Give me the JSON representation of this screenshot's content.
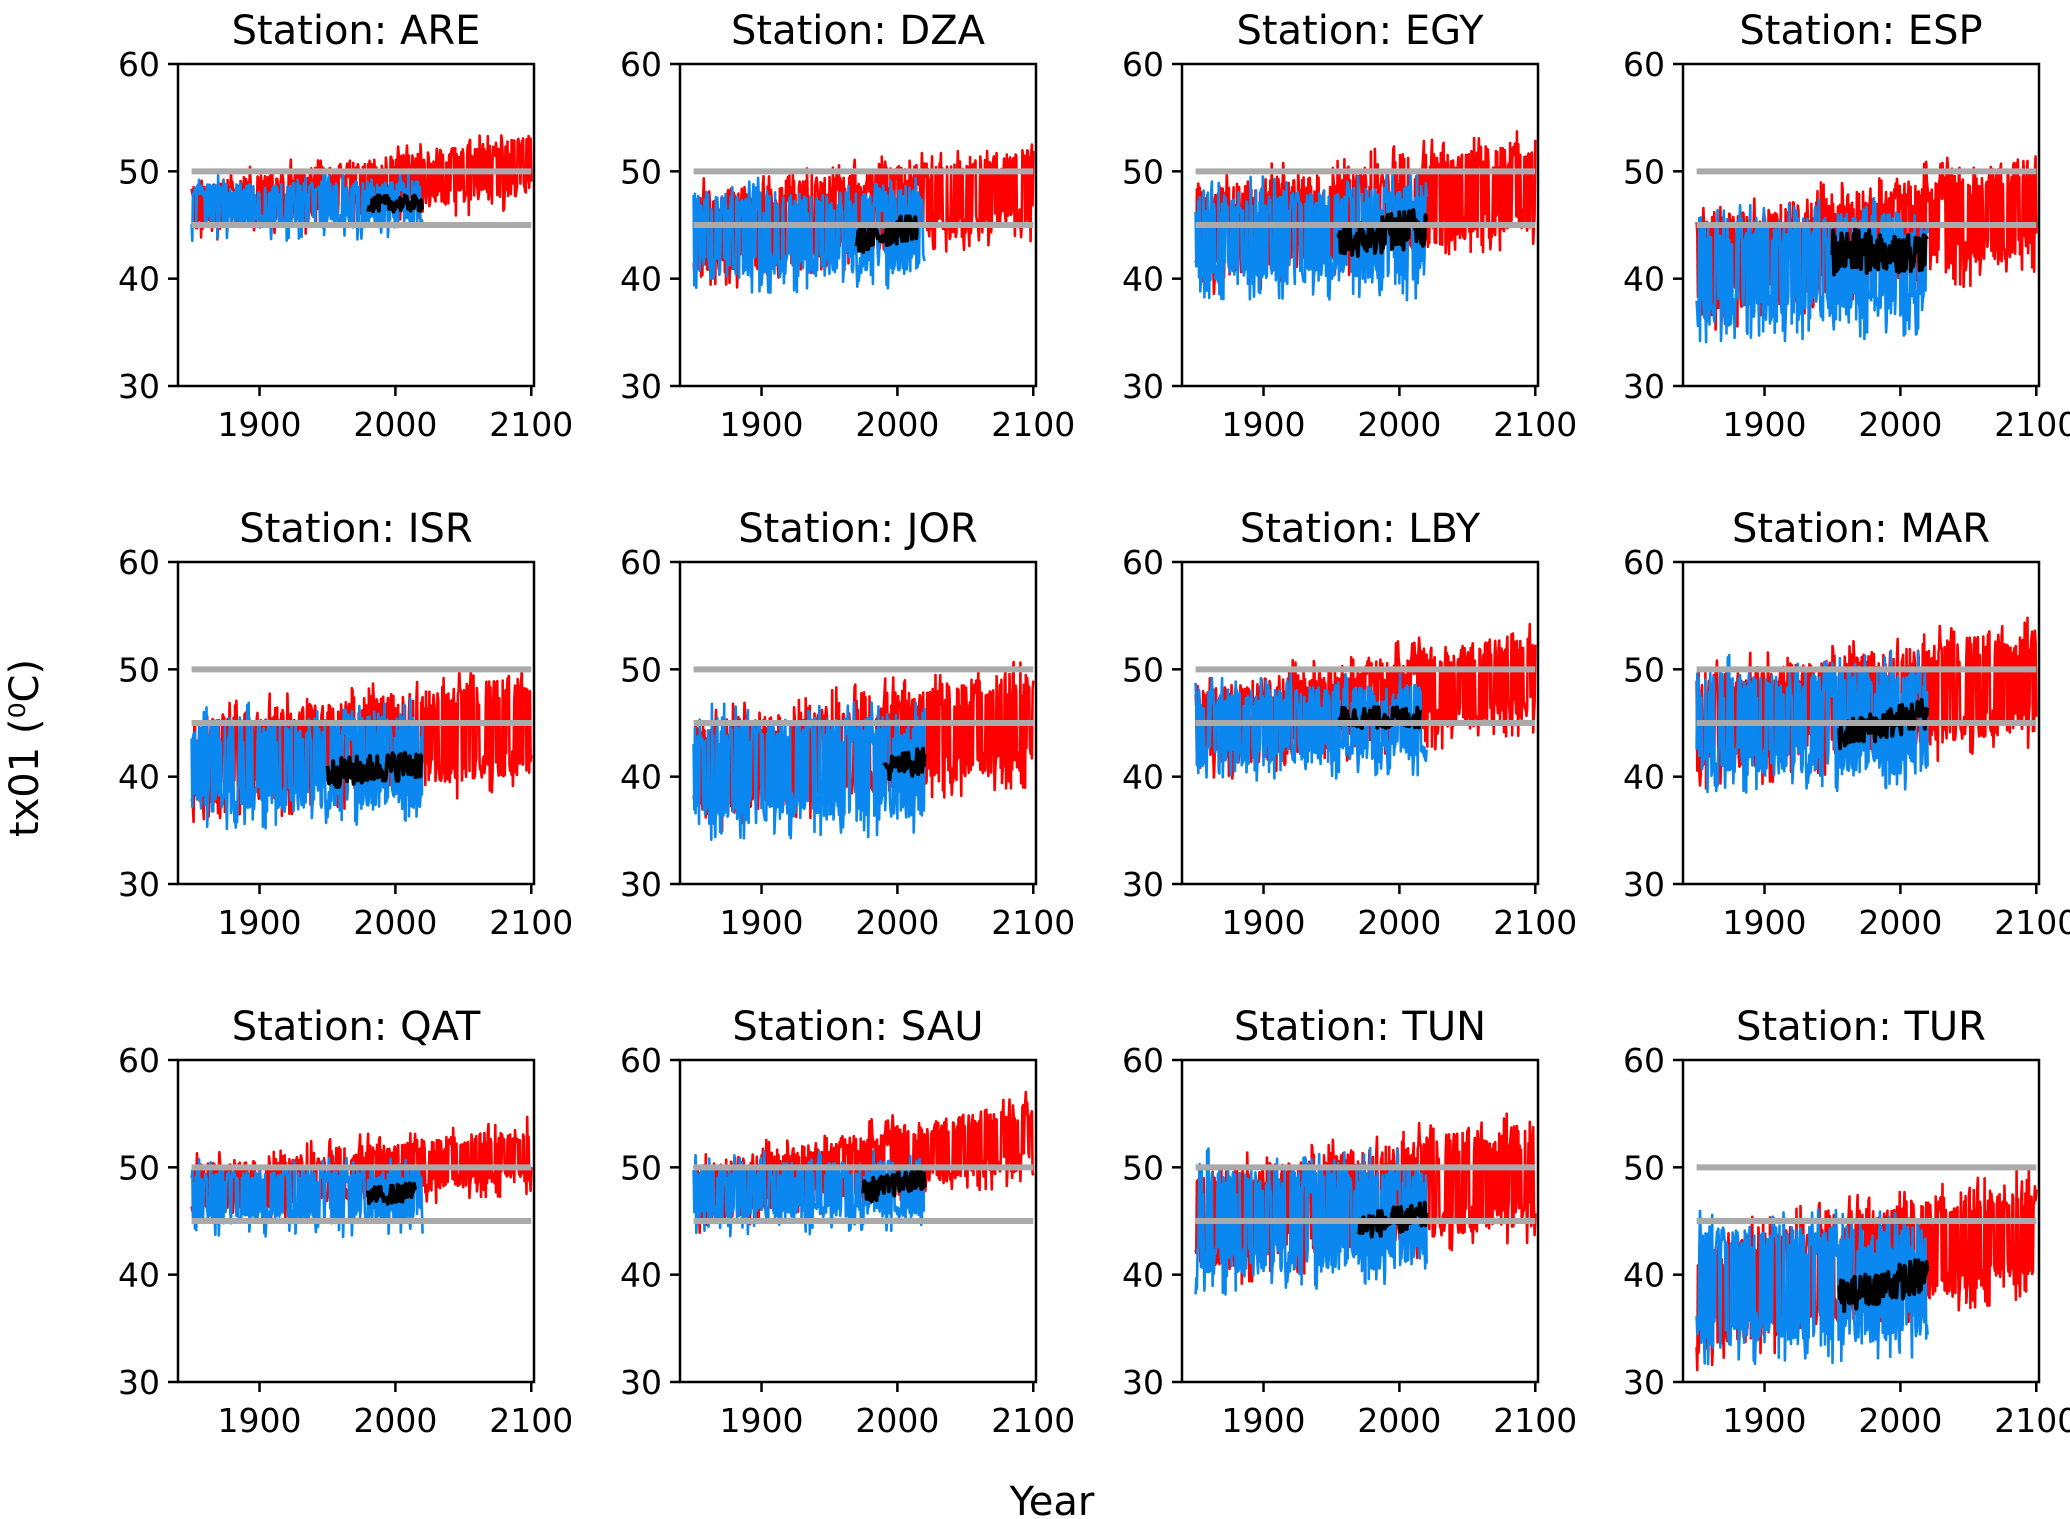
{
  "figure": {
    "xlabel": "Year",
    "ylabel": "tx01 (⁰C)"
  },
  "colors": {
    "historical_projection": "#ff0000",
    "model_simulations": "#0a88f0",
    "observations": "#000000",
    "threshold_lines": "#aaaaaa"
  },
  "chart_data": [
    {
      "type": "line",
      "title": "Station: ARE",
      "xlim": [
        1840,
        2102
      ],
      "ylim": [
        30,
        60
      ],
      "xticks": [
        1900,
        2000,
        2100
      ],
      "yticks": [
        30,
        40,
        50,
        60
      ],
      "grid": false,
      "hlines": [
        45,
        50
      ],
      "series": [
        {
          "color": "#ff0000",
          "x": [
            1850,
            2100
          ],
          "lower": [
            44.0,
            47.5
          ],
          "upper": [
            49.0,
            53.5
          ],
          "endpoint_x": 2100
        },
        {
          "color": "#0a88f0",
          "x": [
            1850,
            2020
          ],
          "lower": [
            44.5,
            44.5
          ],
          "upper": [
            49.0,
            49.5
          ]
        },
        {
          "color": "#000000",
          "x": [
            1980,
            2020
          ],
          "lower": [
            45.5,
            45.5
          ],
          "upper": [
            48.5,
            48.5
          ]
        }
      ]
    },
    {
      "type": "line",
      "title": "Station: DZA",
      "xlim": [
        1840,
        2102
      ],
      "ylim": [
        30,
        60
      ],
      "xticks": [
        1900,
        2000,
        2100
      ],
      "yticks": [
        30,
        40,
        50,
        60
      ],
      "grid": false,
      "hlines": [
        45,
        50
      ],
      "series": [
        {
          "color": "#ff0000",
          "x": [
            1850,
            2100
          ],
          "lower": [
            39.5,
            44.5
          ],
          "upper": [
            48.5,
            52.5
          ]
        },
        {
          "color": "#0a88f0",
          "x": [
            1850,
            2020
          ],
          "lower": [
            39.5,
            40.0
          ],
          "upper": [
            48.5,
            49.0
          ]
        },
        {
          "color": "#000000",
          "x": [
            1970,
            2015
          ],
          "lower": [
            41.0,
            42.5
          ],
          "upper": [
            46.0,
            47.5
          ]
        }
      ]
    },
    {
      "type": "line",
      "title": "Station: EGY",
      "xlim": [
        1840,
        2102
      ],
      "ylim": [
        30,
        60
      ],
      "xticks": [
        1900,
        2000,
        2100
      ],
      "yticks": [
        30,
        40,
        50,
        60
      ],
      "grid": false,
      "hlines": [
        45,
        50
      ],
      "series": [
        {
          "color": "#ff0000",
          "x": [
            1850,
            2100
          ],
          "lower": [
            39.0,
            44.0
          ],
          "upper": [
            49.0,
            53.5
          ]
        },
        {
          "color": "#0a88f0",
          "x": [
            1850,
            2020
          ],
          "lower": [
            39.0,
            39.0
          ],
          "upper": [
            48.5,
            49.5
          ]
        },
        {
          "color": "#000000",
          "x": [
            1955,
            2020
          ],
          "lower": [
            40.0,
            41.0
          ],
          "upper": [
            46.5,
            49.0
          ]
        }
      ]
    },
    {
      "type": "line",
      "title": "Station: ESP",
      "xlim": [
        1840,
        2102
      ],
      "ylim": [
        30,
        60
      ],
      "xticks": [
        1900,
        2000,
        2100
      ],
      "yticks": [
        30,
        40,
        50,
        60
      ],
      "grid": false,
      "hlines": [
        45,
        50
      ],
      "series": [
        {
          "color": "#ff0000",
          "x": [
            1850,
            2100
          ],
          "lower": [
            35.5,
            41.5
          ],
          "upper": [
            46.0,
            52.0
          ]
        },
        {
          "color": "#0a88f0",
          "x": [
            1850,
            2020
          ],
          "lower": [
            35.0,
            35.5
          ],
          "upper": [
            46.0,
            47.0
          ]
        },
        {
          "color": "#000000",
          "x": [
            1950,
            2020
          ],
          "lower": [
            38.0,
            39.0
          ],
          "upper": [
            47.0,
            46.0
          ]
        }
      ]
    },
    {
      "type": "line",
      "title": "Station: ISR",
      "xlim": [
        1840,
        2102
      ],
      "ylim": [
        30,
        60
      ],
      "xticks": [
        1900,
        2000,
        2100
      ],
      "yticks": [
        30,
        40,
        50,
        60
      ],
      "grid": false,
      "hlines": [
        45,
        50
      ],
      "series": [
        {
          "color": "#ff0000",
          "x": [
            1850,
            2100
          ],
          "lower": [
            36.5,
            39.5
          ],
          "upper": [
            46.0,
            50.0
          ]
        },
        {
          "color": "#0a88f0",
          "x": [
            1850,
            2020
          ],
          "lower": [
            36.0,
            36.5
          ],
          "upper": [
            46.0,
            46.5
          ]
        },
        {
          "color": "#000000",
          "x": [
            1950,
            2020
          ],
          "lower": [
            37.5,
            38.5
          ],
          "upper": [
            43.0,
            44.0
          ]
        }
      ]
    },
    {
      "type": "line",
      "title": "Station: JOR",
      "xlim": [
        1840,
        2102
      ],
      "ylim": [
        30,
        60
      ],
      "xticks": [
        1900,
        2000,
        2100
      ],
      "yticks": [
        30,
        40,
        50,
        60
      ],
      "grid": false,
      "hlines": [
        45,
        50
      ],
      "series": [
        {
          "color": "#ff0000",
          "x": [
            1850,
            2100
          ],
          "lower": [
            35.5,
            40.0
          ],
          "upper": [
            45.5,
            50.5
          ]
        },
        {
          "color": "#0a88f0",
          "x": [
            1850,
            2020
          ],
          "lower": [
            35.0,
            35.5
          ],
          "upper": [
            46.0,
            46.5
          ]
        },
        {
          "color": "#000000",
          "x": [
            1990,
            2020
          ],
          "lower": [
            38.5,
            39.0
          ],
          "upper": [
            43.0,
            44.0
          ]
        }
      ]
    },
    {
      "type": "line",
      "title": "Station: LBY",
      "xlim": [
        1840,
        2102
      ],
      "ylim": [
        30,
        60
      ],
      "xticks": [
        1900,
        2000,
        2100
      ],
      "yticks": [
        30,
        40,
        50,
        60
      ],
      "grid": false,
      "hlines": [
        45,
        50
      ],
      "series": [
        {
          "color": "#ff0000",
          "x": [
            1850,
            2100
          ],
          "lower": [
            40.0,
            45.0
          ],
          "upper": [
            48.5,
            54.0
          ]
        },
        {
          "color": "#0a88f0",
          "x": [
            1850,
            2020
          ],
          "lower": [
            40.5,
            41.0
          ],
          "upper": [
            48.5,
            49.0
          ]
        },
        {
          "color": "#000000",
          "x": [
            1955,
            2015
          ],
          "lower": [
            43.5,
            43.5
          ],
          "upper": [
            47.5,
            47.5
          ]
        }
      ]
    },
    {
      "type": "line",
      "title": "Station: MAR",
      "xlim": [
        1840,
        2102
      ],
      "ylim": [
        30,
        60
      ],
      "xticks": [
        1900,
        2000,
        2100
      ],
      "yticks": [
        30,
        40,
        50,
        60
      ],
      "grid": false,
      "hlines": [
        45,
        50
      ],
      "series": [
        {
          "color": "#ff0000",
          "x": [
            1850,
            2100
          ],
          "lower": [
            39.5,
            43.5
          ],
          "upper": [
            50.0,
            54.5
          ]
        },
        {
          "color": "#0a88f0",
          "x": [
            1850,
            2020
          ],
          "lower": [
            39.5,
            39.5
          ],
          "upper": [
            50.5,
            51.0
          ]
        },
        {
          "color": "#000000",
          "x": [
            1955,
            2020
          ],
          "lower": [
            41.0,
            43.0
          ],
          "upper": [
            46.5,
            49.0
          ]
        }
      ]
    },
    {
      "type": "line",
      "title": "Station: QAT",
      "xlim": [
        1840,
        2102
      ],
      "ylim": [
        30,
        60
      ],
      "xticks": [
        1900,
        2000,
        2100
      ],
      "yticks": [
        30,
        40,
        50,
        60
      ],
      "grid": false,
      "hlines": [
        45,
        50
      ],
      "series": [
        {
          "color": "#ff0000",
          "x": [
            1850,
            2100
          ],
          "lower": [
            45.0,
            48.5
          ],
          "upper": [
            50.5,
            54.0
          ]
        },
        {
          "color": "#0a88f0",
          "x": [
            1850,
            2020
          ],
          "lower": [
            44.5,
            44.5
          ],
          "upper": [
            50.0,
            50.5
          ]
        },
        {
          "color": "#000000",
          "x": [
            1980,
            2015
          ],
          "lower": [
            45.5,
            46.0
          ],
          "upper": [
            49.0,
            49.5
          ]
        }
      ]
    },
    {
      "type": "line",
      "title": "Station: SAU",
      "xlim": [
        1840,
        2102
      ],
      "ylim": [
        30,
        60
      ],
      "xticks": [
        1900,
        2000,
        2100
      ],
      "yticks": [
        30,
        40,
        50,
        60
      ],
      "grid": false,
      "hlines": [
        45,
        50
      ],
      "series": [
        {
          "color": "#ff0000",
          "x": [
            1850,
            2100
          ],
          "lower": [
            44.5,
            49.5
          ],
          "upper": [
            50.5,
            56.5
          ]
        },
        {
          "color": "#0a88f0",
          "x": [
            1850,
            2020
          ],
          "lower": [
            44.5,
            45.0
          ],
          "upper": [
            50.5,
            51.0
          ]
        },
        {
          "color": "#000000",
          "x": [
            1975,
            2020
          ],
          "lower": [
            45.5,
            47.0
          ],
          "upper": [
            50.0,
            51.0
          ]
        }
      ]
    },
    {
      "type": "line",
      "title": "Station: TUN",
      "xlim": [
        1840,
        2102
      ],
      "ylim": [
        30,
        60
      ],
      "xticks": [
        1900,
        2000,
        2100
      ],
      "yticks": [
        30,
        40,
        50,
        60
      ],
      "grid": false,
      "hlines": [
        45,
        50
      ],
      "series": [
        {
          "color": "#ff0000",
          "x": [
            1850,
            2100
          ],
          "lower": [
            39.5,
            44.0
          ],
          "upper": [
            50.0,
            55.0
          ]
        },
        {
          "color": "#0a88f0",
          "x": [
            1850,
            2020
          ],
          "lower": [
            39.0,
            40.0
          ],
          "upper": [
            51.0,
            51.0
          ]
        },
        {
          "color": "#000000",
          "x": [
            1970,
            2020
          ],
          "lower": [
            42.0,
            43.0
          ],
          "upper": [
            47.0,
            48.0
          ]
        }
      ]
    },
    {
      "type": "line",
      "title": "Station: TUR",
      "xlim": [
        1840,
        2102
      ],
      "ylim": [
        30,
        60
      ],
      "xticks": [
        1900,
        2000,
        2100
      ],
      "yticks": [
        30,
        40,
        50,
        60
      ],
      "grid": false,
      "hlines": [
        45,
        50
      ],
      "series": [
        {
          "color": "#ff0000",
          "x": [
            1850,
            2100
          ],
          "lower": [
            32.0,
            39.0
          ],
          "upper": [
            44.0,
            49.5
          ]
        },
        {
          "color": "#0a88f0",
          "x": [
            1850,
            2020
          ],
          "lower": [
            32.5,
            33.0
          ],
          "upper": [
            45.5,
            45.5
          ]
        },
        {
          "color": "#000000",
          "x": [
            1955,
            2020
          ],
          "lower": [
            35.0,
            36.5
          ],
          "upper": [
            41.0,
            43.5
          ]
        }
      ]
    }
  ]
}
